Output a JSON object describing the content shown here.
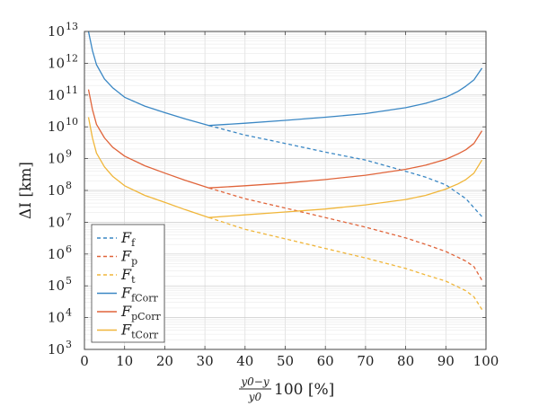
{
  "chart_data": {
    "type": "line",
    "title": "",
    "xlabel": {
      "frac_num": "y0−y",
      "frac_den": "y0",
      "rest": "100 [%]"
    },
    "ylabel": "ΔI [km]",
    "xlim": [
      0,
      100
    ],
    "ylim": [
      1000.0,
      10000000000000.0
    ],
    "yscale": "log",
    "grid": true,
    "xticks": [
      0,
      10,
      20,
      30,
      40,
      50,
      60,
      70,
      80,
      90,
      100
    ],
    "yticks": [
      {
        "base": "10",
        "exp": "3",
        "value": 1000.0
      },
      {
        "base": "10",
        "exp": "4",
        "value": 10000.0
      },
      {
        "base": "10",
        "exp": "5",
        "value": 100000.0
      },
      {
        "base": "10",
        "exp": "6",
        "value": 1000000.0
      },
      {
        "base": "10",
        "exp": "7",
        "value": 10000000.0
      },
      {
        "base": "10",
        "exp": "8",
        "value": 100000000.0
      },
      {
        "base": "10",
        "exp": "9",
        "value": 1000000000.0
      },
      {
        "base": "10",
        "exp": "10",
        "value": 10000000000.0
      },
      {
        "base": "10",
        "exp": "11",
        "value": 100000000000.0
      },
      {
        "base": "10",
        "exp": "12",
        "value": 1000000000000.0
      },
      {
        "base": "10",
        "exp": "13",
        "value": 10000000000000.0
      }
    ],
    "legend_position": "bottom-left",
    "series": [
      {
        "name_main": "F",
        "name_sub": "f",
        "color": "#3a87c4",
        "dash": true,
        "x": [
          31,
          40,
          50,
          60,
          70,
          80,
          85,
          90,
          95,
          99
        ],
        "y": [
          11000000000.0,
          5500000000.0,
          3000000000.0,
          1600000000.0,
          900000000.0,
          400000000.0,
          260000000.0,
          150000000.0,
          55000000.0,
          15000000.0
        ]
      },
      {
        "name_main": "F",
        "name_sub": "p",
        "color": "#e0643a",
        "dash": true,
        "x": [
          31,
          40,
          50,
          60,
          70,
          80,
          85,
          90,
          95,
          97,
          99
        ],
        "y": [
          120000000.0,
          55000000.0,
          28000000.0,
          14000000.0,
          7000000.0,
          3200000.0,
          2000000.0,
          1200000.0,
          600000.0,
          400000.0,
          150000.0
        ]
      },
      {
        "name_main": "F",
        "name_sub": "t",
        "color": "#f0b63a",
        "dash": true,
        "x": [
          31,
          40,
          50,
          60,
          70,
          80,
          85,
          90,
          95,
          97,
          99
        ],
        "y": [
          14000000.0,
          6000000.0,
          3000000.0,
          1500000.0,
          750000.0,
          350000.0,
          220000.0,
          140000.0,
          70000.0,
          45000.0,
          18000.0
        ]
      },
      {
        "name_main": "F",
        "name_sub": "fCorr",
        "color": "#3a87c4",
        "dash": false,
        "x": [
          1,
          2,
          3,
          5,
          7,
          10,
          15,
          20,
          25,
          31,
          40,
          50,
          60,
          70,
          80,
          85,
          90,
          93,
          95,
          97,
          99
        ],
        "y": [
          10000000000000.0,
          2500000000000.0,
          900000000000.0,
          320000000000.0,
          170000000000.0,
          85000000000.0,
          45000000000.0,
          28000000000.0,
          18000000000.0,
          11000000000.0,
          13000000000.0,
          16000000000.0,
          20000000000.0,
          26000000000.0,
          40000000000.0,
          55000000000.0,
          85000000000.0,
          130000000000.0,
          190000000000.0,
          300000000000.0,
          700000000000.0
        ]
      },
      {
        "name_main": "F",
        "name_sub": "pCorr",
        "color": "#e0643a",
        "dash": false,
        "x": [
          1,
          2,
          3,
          5,
          7,
          10,
          15,
          20,
          25,
          31,
          40,
          50,
          60,
          70,
          80,
          85,
          90,
          93,
          95,
          97,
          99
        ],
        "y": [
          150000000000.0,
          35000000000.0,
          12000000000.0,
          4500000000.0,
          2300000000.0,
          1200000000.0,
          600000000.0,
          350000000.0,
          210000000.0,
          120000000.0,
          140000000.0,
          170000000.0,
          220000000.0,
          300000000.0,
          460000000.0,
          620000000.0,
          950000000.0,
          1400000000.0,
          1900000000.0,
          3000000000.0,
          7500000000.0
        ]
      },
      {
        "name_main": "F",
        "name_sub": "tCorr",
        "color": "#f0b63a",
        "dash": false,
        "x": [
          1,
          2,
          3,
          5,
          7,
          10,
          15,
          20,
          25,
          31,
          40,
          50,
          60,
          70,
          80,
          85,
          90,
          93,
          95,
          97,
          99
        ],
        "y": [
          20000000000.0,
          4500000000.0,
          1500000000.0,
          550000000.0,
          280000000.0,
          140000000.0,
          70000000.0,
          42000000.0,
          25000000.0,
          14000000.0,
          17000000.0,
          21000000.0,
          26000000.0,
          35000000.0,
          52000000.0,
          70000000.0,
          110000000.0,
          160000000.0,
          220000000.0,
          350000000.0,
          900000000.0
        ]
      }
    ]
  }
}
